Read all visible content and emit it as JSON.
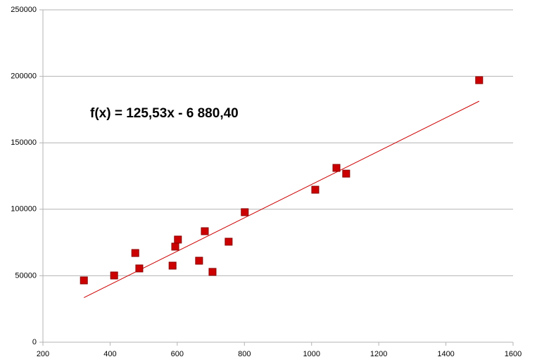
{
  "chart_data": {
    "type": "scatter",
    "annotation": "f(x) = 125,53x - 6 880,40",
    "series": [
      {
        "color": "#cc0000",
        "x": [
          322,
          412,
          475,
          487,
          586,
          594,
          602,
          665,
          682,
          705,
          753,
          801,
          1011,
          1074,
          1103,
          1499
        ],
        "values": [
          46500,
          50200,
          67100,
          55500,
          57600,
          71900,
          77200,
          61300,
          83500,
          52900,
          75600,
          97800,
          114700,
          131100,
          126800,
          197100
        ]
      }
    ],
    "trendline": {
      "color": "#cc0000",
      "x": [
        322,
        1499
      ],
      "values": [
        33540,
        181289
      ]
    },
    "xlim": [
      200,
      1600
    ],
    "xticks": [
      200,
      400,
      600,
      800,
      1000,
      1200,
      1400,
      1600
    ],
    "ylim": [
      0,
      250000
    ],
    "yticks": [
      0,
      50000,
      100000,
      150000,
      200000,
      250000
    ],
    "grid": true
  }
}
